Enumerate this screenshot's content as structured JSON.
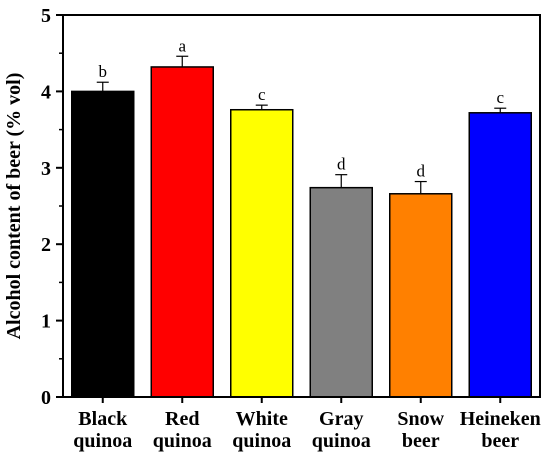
{
  "chart_data": {
    "type": "bar",
    "ylabel": "Alcohol content of beer (% vol)",
    "xlabel": "",
    "ylim": [
      0,
      5
    ],
    "yticks": [
      "0",
      "1",
      "2",
      "3",
      "4",
      "5"
    ],
    "categories": [
      [
        "Black",
        "quinoa"
      ],
      [
        "Red",
        "quinoa"
      ],
      [
        "White",
        "quinoa"
      ],
      [
        "Gray",
        "quinoa"
      ],
      [
        "Snow",
        "beer"
      ],
      [
        "Heineken",
        "beer"
      ]
    ],
    "values": [
      4.0,
      4.32,
      3.76,
      2.74,
      2.66,
      3.72
    ],
    "errors": [
      0.12,
      0.14,
      0.06,
      0.17,
      0.16,
      0.06
    ],
    "significance": [
      "b",
      "a",
      "c",
      "d",
      "d",
      "c"
    ],
    "colors": [
      "#000000",
      "#ff0000",
      "#ffff00",
      "#808080",
      "#ff8000",
      "#0000ff"
    ],
    "grid": false,
    "legend": "none"
  }
}
